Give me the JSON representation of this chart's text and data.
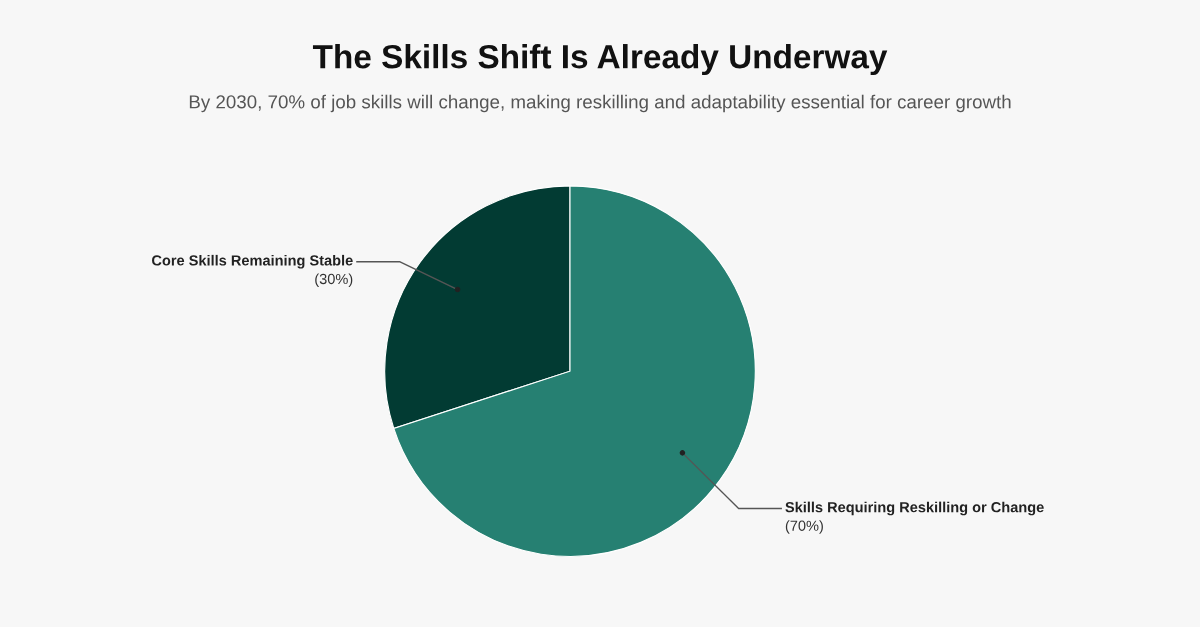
{
  "chart_data": {
    "type": "pie",
    "title": "The Skills Shift Is Already Underway",
    "subtitle": "By 2030, 70% of job skills will change, making reskilling and adaptability essential for career growth",
    "categories": [
      "Core Skills Remaining Stable",
      "Skills Requiring Reskilling or Change"
    ],
    "values": [
      30,
      70
    ],
    "value_labels": [
      "(30%)",
      "(70%)"
    ],
    "colors": [
      "#023b33",
      "#268072"
    ]
  }
}
